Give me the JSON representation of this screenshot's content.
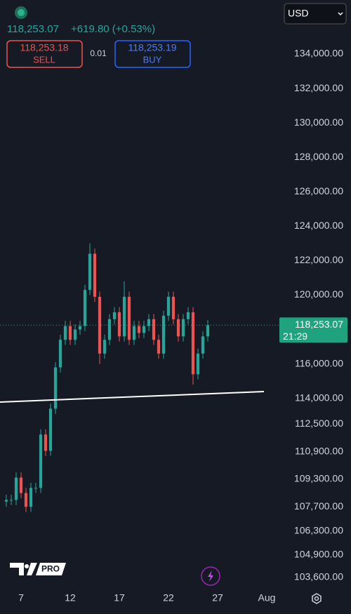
{
  "header": {
    "price": "118,253.07",
    "change": "+619.80 (+0.53%)",
    "sell_price": "118,253.18",
    "sell_label": "SELL",
    "spread": "0.01",
    "buy_price": "118,253.19",
    "buy_label": "BUY",
    "currency": "USD",
    "badge": "PRO"
  },
  "chart_data": {
    "type": "candlestick",
    "x": [
      5.5,
      6,
      6.5,
      7,
      7.5,
      8,
      8.5,
      9,
      9.5,
      10,
      10.5,
      11,
      11.5,
      12,
      12.5,
      13,
      13.5,
      14,
      14.5,
      15,
      15.5,
      16,
      16.5,
      17,
      17.5,
      18,
      18.5,
      19,
      19.5,
      20,
      20.5,
      21,
      21.5,
      22,
      22.5,
      23,
      23.5,
      24,
      24.5,
      25,
      25.5,
      26
    ],
    "open": [
      108000,
      108100,
      108100,
      109400,
      108500,
      107700,
      108800,
      108800,
      111900,
      110950,
      113400,
      115800,
      117400,
      118200,
      117400,
      118000,
      118200,
      120300,
      122400,
      119900,
      116600,
      117400,
      118600,
      119000,
      117600,
      119900,
      117400,
      118200,
      117800,
      118200,
      118600,
      117400,
      116600,
      118800,
      119900,
      118600,
      117600,
      118600,
      119000,
      115400,
      116600,
      117600
    ],
    "high": [
      108400,
      108400,
      109700,
      109700,
      108800,
      109100,
      109100,
      112200,
      112200,
      113700,
      116100,
      117700,
      118500,
      118500,
      118300,
      118500,
      120600,
      123000,
      122700,
      120200,
      117700,
      118900,
      119300,
      119300,
      120800,
      120200,
      118500,
      118500,
      118500,
      118900,
      118900,
      117700,
      119100,
      120200,
      120200,
      118900,
      118900,
      119300,
      119300,
      116900,
      117900,
      118550
    ],
    "low": [
      107700,
      107800,
      107800,
      108200,
      107400,
      107400,
      108500,
      108500,
      110650,
      110650,
      113100,
      115500,
      117100,
      117100,
      117100,
      117700,
      117900,
      120000,
      119600,
      116000,
      116300,
      117100,
      118300,
      117300,
      117300,
      117100,
      117100,
      117500,
      117500,
      117900,
      117100,
      116300,
      116300,
      118500,
      118300,
      117300,
      117300,
      118300,
      114800,
      115100,
      116300,
      117300
    ],
    "close": [
      108100,
      108100,
      109400,
      108500,
      107700,
      108800,
      108800,
      111900,
      110950,
      113400,
      115800,
      117400,
      118200,
      117400,
      118000,
      118200,
      120300,
      122400,
      119900,
      116600,
      117400,
      118600,
      119000,
      117600,
      119900,
      117400,
      118200,
      117800,
      118200,
      118600,
      117400,
      116600,
      118800,
      119900,
      118600,
      117600,
      118600,
      119000,
      115400,
      116600,
      117600,
      118250
    ],
    "up_color": "#26a69a",
    "down_color": "#ef5350",
    "xlim": [
      4.857,
      33.43
    ],
    "xticks": [
      7,
      12,
      17,
      22,
      27,
      {
        "value": 32,
        "label": "Aug"
      }
    ],
    "ylim": [
      102900,
      137140
    ],
    "yticks": [
      {
        "value": 134000,
        "label": "134,000.00"
      },
      {
        "value": 132000,
        "label": "132,000.00"
      },
      {
        "value": 130000,
        "label": "130,000.00"
      },
      {
        "value": 128000,
        "label": "128,000.00"
      },
      {
        "value": 126000,
        "label": "126,000.00"
      },
      {
        "value": 124000,
        "label": "124,000.00"
      },
      {
        "value": 122000,
        "label": "122,000.00"
      },
      {
        "value": 120000,
        "label": "120,000.00"
      },
      {
        "value": 116000,
        "label": "116,000.00"
      },
      {
        "value": 114000,
        "label": "114,000.00"
      },
      {
        "value": 112500,
        "label": "112,500.00"
      },
      {
        "value": 110900,
        "label": "110,900.00"
      },
      {
        "value": 109300,
        "label": "109,300.00"
      },
      {
        "value": 107700,
        "label": "107,700.00"
      },
      {
        "value": 106300,
        "label": "106,300.00"
      },
      {
        "value": 104900,
        "label": "104,900.00"
      },
      {
        "value": 103600,
        "label": "103,600.00"
      }
    ],
    "last_price": {
      "value": 118253.07,
      "label": "118,253.07"
    },
    "countdown": "21:29"
  }
}
